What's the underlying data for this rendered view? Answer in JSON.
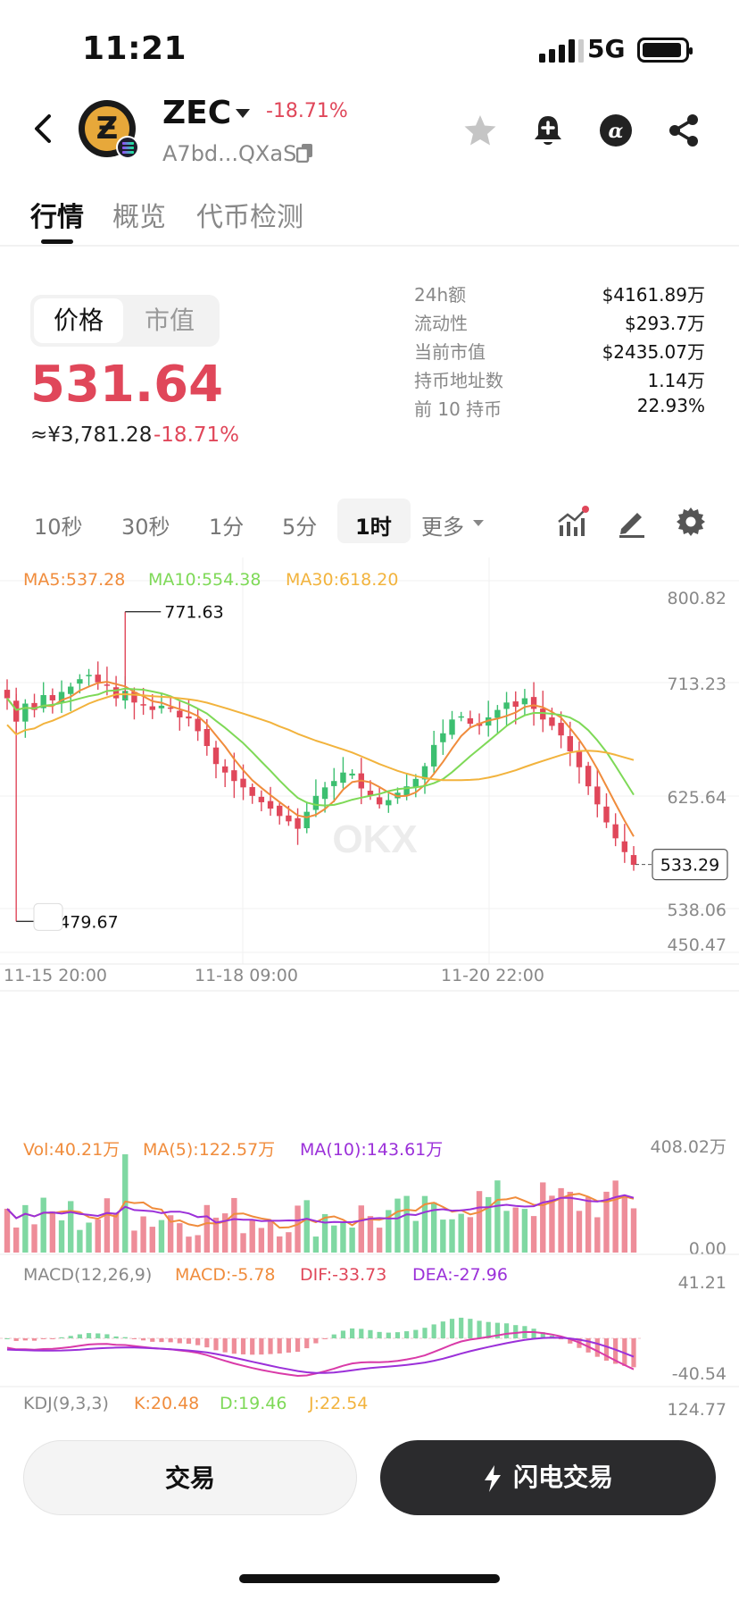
{
  "status_bar": {
    "time": "11:21",
    "network": "5G"
  },
  "header": {
    "symbol": "ZEC",
    "change": "-18.71%",
    "address": "A7bd...QXaS",
    "icons": [
      "back-icon",
      "star-icon",
      "bell-plus-icon",
      "alpha-icon",
      "share-icon"
    ]
  },
  "tabs": [
    "行情",
    "概览",
    "代币检测"
  ],
  "price_toggle": {
    "price": "价格",
    "market_cap": "市值"
  },
  "price": {
    "value": "531.64",
    "cny": "≈¥3,781.28",
    "change": "-18.71%"
  },
  "stats": [
    {
      "label": "24h额",
      "value": "$4161.89万"
    },
    {
      "label": "流动性",
      "value": "$293.7万"
    },
    {
      "label": "当前市值",
      "value": "$2435.07万"
    },
    {
      "label": "持币地址数",
      "value": "1.14万"
    },
    {
      "label": "前 10 持币",
      "value": "22.93%"
    }
  ],
  "intervals": [
    "10秒",
    "30秒",
    "1分",
    "5分",
    "1时",
    "更多"
  ],
  "active_interval": "1时",
  "legend": {
    "ma5": "MA5:537.28",
    "ma10": "MA10:554.38",
    "ma30": "MA30:618.20",
    "vol": "Vol:40.21万",
    "vol_ma5": "MA(5):122.57万",
    "vol_ma10": "MA(10):143.61万",
    "macd_title": "MACD(12,26,9)",
    "macd": "MACD:-5.78",
    "dif": "DIF:-33.73",
    "dea": "DEA:-27.96",
    "kdj_title": "KDJ(9,3,3)",
    "k": "K:20.48",
    "d": "D:19.46",
    "j": "J:22.54"
  },
  "colors": {
    "up": "#3cbf70",
    "down": "#e0475a",
    "ma5": "#f08c3c",
    "ma10": "#7ed957",
    "ma30": "#f2b33d",
    "ma_vol10": "#9b30d9"
  },
  "buttons": {
    "trade": "交易",
    "flash_trade": "闪电交易"
  },
  "chart_data": {
    "type": "candlestick",
    "y_ticks": [
      "800.82",
      "713.23",
      "625.64",
      "538.06",
      "450.47"
    ],
    "ylim": [
      450.47,
      800.82
    ],
    "x_ticks": [
      "11-15 20:00",
      "11-18 09:00",
      "11-20 22:00"
    ],
    "high_marker": "771.63",
    "low_marker": "479.67",
    "current_price": "533.29",
    "volume_axis": [
      "408.02万",
      "0.00"
    ],
    "macd_axis": [
      "41.21",
      "-40.54"
    ],
    "kdj_axis": [
      "124.77"
    ],
    "close_series": [
      690,
      668,
      685,
      679,
      693,
      688,
      696,
      701,
      708,
      712,
      705,
      702,
      690,
      697,
      686,
      684,
      679,
      683,
      681,
      672,
      671,
      659,
      645,
      628,
      620,
      612,
      606,
      598,
      592,
      586,
      579,
      574,
      567,
      583,
      598,
      606,
      612,
      620,
      619,
      605,
      598,
      590,
      594,
      601,
      607,
      614,
      626,
      646,
      657,
      670,
      673,
      666,
      664,
      672,
      679,
      686,
      682,
      690,
      680,
      670,
      664,
      655,
      640,
      625,
      607,
      590,
      573,
      558,
      545,
      533
    ]
  }
}
